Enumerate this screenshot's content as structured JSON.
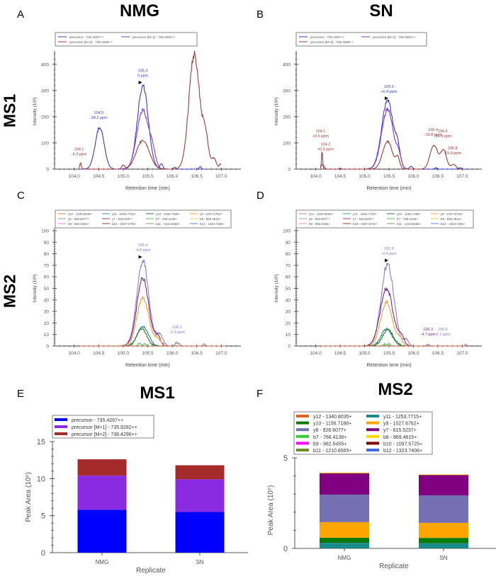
{
  "figure": {
    "column_titles": [
      "NMG",
      "SN"
    ],
    "row_titles": [
      "MS1",
      "MS2"
    ],
    "panel_letters": [
      "A",
      "B",
      "C",
      "D",
      "E",
      "F"
    ]
  },
  "chart_data": [
    {
      "id": "A",
      "type": "line",
      "title": "",
      "xlabel": "Retention time (min)",
      "ylabel": "Intensity (10^3)",
      "xlim": [
        103.6,
        107.4
      ],
      "ylim": [
        0,
        440
      ],
      "xticks": [
        "104.0",
        "104.5",
        "105.0",
        "105.5",
        "106.0",
        "106.5",
        "107.0"
      ],
      "yticks": [
        "0",
        "100",
        "200",
        "300",
        "400"
      ],
      "legend": [
        "precursor - 735.4267++",
        "precursor [M+1] - 735.9282++",
        "precursor [M+2] - 736.4296++"
      ],
      "series": [
        {
          "name": "precursor - 735.4267++",
          "color": "#3a3ad6",
          "peaks": [
            [
              104.52,
              160,
              0.09
            ],
            [
              105.4,
              320,
              0.11
            ],
            [
              105.78,
              20,
              0.03
            ],
            [
              106.05,
              8,
              0.02
            ],
            [
              106.57,
              10,
              0.02
            ]
          ],
          "range": [
            104.1,
            106.7
          ]
        },
        {
          "name": "precursor [M+1] - 735.9282++",
          "color": "#8a3ad6",
          "peaks": [
            [
              105.4,
              225,
              0.12
            ],
            [
              105.6,
              50,
              0.06
            ]
          ],
          "range": [
            104.9,
            106.0
          ]
        },
        {
          "name": "precursor [M+2] - 736.4296++",
          "color": "#a33a3a",
          "peaks": [
            [
              104.13,
              25,
              0.015
            ],
            [
              105.0,
              15,
              0.03
            ],
            [
              105.4,
              110,
              0.13
            ],
            [
              106.45,
              440,
              0.11
            ],
            [
              106.68,
              110,
              0.06
            ],
            [
              106.85,
              40,
              0.05
            ],
            [
              106.98,
              18,
              0.02
            ]
          ],
          "range": [
            104.1,
            107.0
          ]
        }
      ],
      "annotations": [
        {
          "x": 104.1,
          "y": 25,
          "text": [
            "104.1",
            "-6.3 ppm"
          ],
          "color": "#a33a3a"
        },
        {
          "x": 104.5,
          "y": 165,
          "text": [
            "104.5",
            "-28.2 ppm"
          ],
          "color": "#3a3ad6"
        },
        {
          "x": 105.4,
          "y": 325,
          "text": [
            "105.4",
            "0 ppm"
          ],
          "color": "#3a3ad6"
        }
      ]
    },
    {
      "id": "B",
      "type": "line",
      "title": "",
      "xlabel": "Retention time (min)",
      "ylabel": "Intensity (10^3)",
      "xlim": [
        103.6,
        107.4
      ],
      "ylim": [
        0,
        440
      ],
      "xticks": [
        "104.0",
        "104.5",
        "105.0",
        "105.5",
        "106.0",
        "106.5",
        "107.0"
      ],
      "yticks": [
        "0",
        "100",
        "200",
        "300",
        "400"
      ],
      "legend": [
        "precursor - 735.4267++",
        "precursor [M+1] - 735.9282++",
        "precursor [M+2] - 736.4296++"
      ],
      "series": [
        {
          "name": "precursor - 735.4267++",
          "color": "#3a3ad6",
          "peaks": [
            [
              104.14,
              18,
              0.03
            ],
            [
              104.5,
              3,
              0.02
            ],
            [
              105.47,
              260,
              0.12
            ],
            [
              105.68,
              60,
              0.05
            ],
            [
              105.95,
              10,
              0.03
            ],
            [
              106.46,
              5,
              0.02
            ],
            [
              106.95,
              5,
              0.03
            ]
          ],
          "range": [
            104.1,
            107.1
          ]
        },
        {
          "name": "precursor [M+1] - 735.9282++",
          "color": "#8a3ad6",
          "peaks": [
            [
              105.47,
              228,
              0.12
            ],
            [
              105.7,
              40,
              0.05
            ]
          ],
          "range": [
            105.0,
            106.1
          ]
        },
        {
          "name": "precursor [M+2] - 736.4296++",
          "color": "#a33a3a",
          "peaks": [
            [
              104.13,
              70,
              0.012
            ],
            [
              105.47,
              105,
              0.1
            ],
            [
              105.68,
              40,
              0.04
            ],
            [
              106.42,
              90,
              0.08
            ],
            [
              106.62,
              70,
              0.06
            ],
            [
              106.82,
              18,
              0.05
            ]
          ],
          "range": [
            104.1,
            107.0
          ]
        }
      ],
      "annotations": [
        {
          "x": 104.1,
          "y": 95,
          "text": [
            "104.1",
            "+0.5 ppm"
          ],
          "color": "#a33a3a"
        },
        {
          "x": 104.2,
          "y": 45,
          "text": [
            "104.2",
            "+0.5 ppm"
          ],
          "color": "#a33a3a"
        },
        {
          "x": 105.5,
          "y": 265,
          "text": [
            "105.5",
            "+0.4 ppm"
          ],
          "color": "#3a3ad6"
        },
        {
          "x": 106.4,
          "y": 100,
          "text": [
            "106.4",
            "-19.8 ppm"
          ],
          "color": "#a33a3a"
        },
        {
          "x": 106.6,
          "y": 95,
          "text": [
            "106.6",
            "-19.9 ppm"
          ],
          "color": "#a33a3a"
        },
        {
          "x": 106.8,
          "y": 30,
          "text": [
            "106.8",
            "-19.9 ppm"
          ],
          "color": "#a33a3a"
        }
      ]
    },
    {
      "id": "C",
      "type": "line",
      "title": "",
      "xlabel": "Retention time (min)",
      "ylabel": "Intensity (10^3)",
      "xlim": [
        103.6,
        107.4
      ],
      "ylim": [
        0,
        100
      ],
      "xticks": [
        "104.0",
        "104.5",
        "105.0",
        "105.5",
        "106.0",
        "106.5",
        "107.0"
      ],
      "yticks": [
        "0",
        "10",
        "20",
        "30",
        "40",
        "50",
        "60",
        "70",
        "80",
        "90",
        "100"
      ],
      "legend": [
        "y12 - 1340.8035+",
        "y11 - 1253.7715+",
        "y10 - 1156.7188+",
        "y9 - 1027.6762+",
        "y8 - 928.6077+",
        "y7 - 815.5237+",
        "b7 - 768.4138+",
        "b8 - 869.4615+",
        "b9 - 982.5455+",
        "b10 - 1097.5725+",
        "b11 - 1210.6565+",
        "b12 - 1323.7406+"
      ],
      "series": [
        {
          "name": "y8 - 928.6077+",
          "color": "#8c7ad0",
          "peaks": [
            [
              105.4,
              74,
              0.12
            ],
            [
              105.75,
              10,
              0.06
            ],
            [
              106.1,
              3,
              0.04
            ],
            [
              106.65,
              2,
              0.02
            ]
          ],
          "range": [
            104.1,
            107.1
          ]
        },
        {
          "name": "y7 - 815.5237+",
          "color": "#7a2a8a",
          "peaks": [
            [
              105.4,
              59,
              0.12
            ],
            [
              105.7,
              8,
              0.06
            ]
          ],
          "range": [
            104.1,
            107.1
          ]
        },
        {
          "name": "y9 - 1027.6762+",
          "color": "#ff9a30",
          "peaks": [
            [
              105.4,
              42,
              0.12
            ],
            [
              105.7,
              6,
              0.06
            ]
          ],
          "range": [
            104.1,
            107.1
          ]
        },
        {
          "name": "y11 - 1253.7715+",
          "color": "#2a8a7a",
          "peaks": [
            [
              105.4,
              17,
              0.11
            ]
          ],
          "range": [
            104.1,
            107.1
          ]
        },
        {
          "name": "y10 - 1156.7188+",
          "color": "#2a7a3a",
          "peaks": [
            [
              105.38,
              15,
              0.1
            ]
          ],
          "range": [
            104.1,
            107.1
          ]
        },
        {
          "name": "b7 - 768.4138+",
          "color": "#4ac050",
          "peaks": [
            [
              105.33,
              2,
              0.03
            ],
            [
              105.45,
              2,
              0.03
            ]
          ],
          "range": [
            104.1,
            107.1
          ]
        },
        {
          "name": "y12 - 1340.8035+",
          "color": "#c0603a",
          "peaks": [],
          "range": [
            104.1,
            107.1
          ]
        }
      ],
      "annotations": [
        {
          "x": 105.4,
          "y": 76,
          "text": [
            "105.4",
            "-4.8 ppm"
          ],
          "color": "#8c7ad0"
        },
        {
          "x": 106.1,
          "y": 5,
          "text": [
            "106.1",
            "-3.3 ppm"
          ],
          "color": "#8c7ad0"
        }
      ]
    },
    {
      "id": "D",
      "type": "line",
      "title": "",
      "xlabel": "Retention time (min)",
      "ylabel": "Intensity (10^3)",
      "xlim": [
        103.6,
        107.4
      ],
      "ylim": [
        0,
        100
      ],
      "xticks": [
        "104.0",
        "104.5",
        "105.0",
        "105.5",
        "106.0",
        "106.5",
        "107.0"
      ],
      "yticks": [
        "0",
        "10",
        "20",
        "30",
        "40",
        "50",
        "60",
        "70",
        "80",
        "90",
        "100"
      ],
      "legend": [
        "y12 - 1340.8035+",
        "y11 - 1253.7715+",
        "y10 - 1156.7188+",
        "y9 - 1027.6762+",
        "y8 - 928.6077+",
        "y7 - 815.5237+",
        "b7 - 768.4138+",
        "b8 - 869.4615+",
        "b9 - 982.5455+",
        "b10 - 1097.5725+",
        "b11 - 1210.6565+",
        "b12 - 1323.7406+"
      ],
      "series": [
        {
          "name": "y8 - 928.6077+",
          "color": "#8c7ad0",
          "peaks": [
            [
              105.47,
              71,
              0.13
            ],
            [
              105.85,
              5,
              0.05
            ],
            [
              106.3,
              1.5,
              0.03
            ],
            [
              107.07,
              2,
              0.01
            ]
          ],
          "range": [
            104.1,
            107.1
          ]
        },
        {
          "name": "y7 - 815.5237+",
          "color": "#7a2a8a",
          "peaks": [
            [
              105.45,
              50,
              0.13
            ],
            [
              105.75,
              8,
              0.06
            ]
          ],
          "range": [
            104.1,
            107.1
          ]
        },
        {
          "name": "y9 - 1027.6762+",
          "color": "#ff9a30",
          "peaks": [
            [
              105.45,
              38,
              0.12
            ],
            [
              105.72,
              6,
              0.05
            ]
          ],
          "range": [
            104.1,
            107.1
          ]
        },
        {
          "name": "y11 - 1253.7715+",
          "color": "#2a8a7a",
          "peaks": [
            [
              105.45,
              15,
              0.11
            ]
          ],
          "range": [
            104.1,
            107.1
          ]
        },
        {
          "name": "y10 - 1156.7188+",
          "color": "#2a7a3a",
          "peaks": [
            [
              105.48,
              14,
              0.11
            ]
          ],
          "range": [
            104.1,
            107.1
          ]
        },
        {
          "name": "b7 - 768.4138+",
          "color": "#4ac050",
          "peaks": [
            [
              105.4,
              1.5,
              0.03
            ],
            [
              105.5,
              1.5,
              0.03
            ]
          ],
          "range": [
            104.1,
            107.1
          ]
        },
        {
          "name": "y12 - 1340.8035+",
          "color": "#c0603a",
          "peaks": [],
          "range": [
            104.1,
            107.1
          ]
        }
      ],
      "annotations": [
        {
          "x": 105.5,
          "y": 73,
          "text": [
            "105.5",
            "-4.4 ppm"
          ],
          "color": "#8c7ad0"
        },
        {
          "x": 106.3,
          "y": 3,
          "text": [
            "106.3",
            "-4.7 ppm"
          ],
          "color": "#7a2a8a"
        },
        {
          "x": 106.6,
          "y": 3,
          "text": [
            "106.6",
            "-6.1 ppm"
          ],
          "color": "#8c7ad0"
        }
      ]
    },
    {
      "id": "E",
      "type": "bar",
      "stacked": true,
      "title": "MS1",
      "xlabel": "Replicate",
      "ylabel": "Peak Area (10^6)",
      "categories": [
        "NMG",
        "SN"
      ],
      "ylim": [
        0,
        15
      ],
      "yticks": [
        "0",
        "5",
        "10",
        "15"
      ],
      "series": [
        {
          "name": "precursor - 735.4267++",
          "color": "#0000ff",
          "values": [
            5.8,
            5.5
          ]
        },
        {
          "name": "precursor [M+1] - 735.9282++",
          "color": "#8a2be2",
          "values": [
            4.6,
            4.4
          ]
        },
        {
          "name": "precursor [M+2] - 736.4296++",
          "color": "#a52a2a",
          "values": [
            2.2,
            1.9
          ]
        }
      ]
    },
    {
      "id": "F",
      "type": "bar",
      "stacked": true,
      "title": "MS2",
      "xlabel": "Replicate",
      "ylabel": "Peak Area (10^6)",
      "categories": [
        "NMG",
        "SN"
      ],
      "ylim": [
        0,
        5
      ],
      "yticks": [
        "0",
        "5"
      ],
      "series": [
        {
          "name": "y11 - 1253.7715+",
          "color": "#1a8a8a",
          "values": [
            0.31,
            0.28
          ]
        },
        {
          "name": "y10 - 1156.7188+",
          "color": "#0a7a0a",
          "values": [
            0.28,
            0.3
          ]
        },
        {
          "name": "y9 - 1027.6762+",
          "color": "#ffa500",
          "values": [
            0.86,
            0.83
          ]
        },
        {
          "name": "y8 - 928.6077+",
          "color": "#7570b3",
          "values": [
            1.52,
            1.52
          ]
        },
        {
          "name": "y7 - 815.5237+",
          "color": "#800080",
          "values": [
            1.17,
            1.13
          ]
        },
        {
          "name": "y12 - 1340.8035+",
          "color": "#d2691e",
          "values": [
            0.02,
            0.01
          ]
        },
        {
          "name": "b8 - 869.4615+",
          "color": "#ffd700",
          "values": [
            0.02,
            0.01
          ]
        },
        {
          "name": "b7 - 768.4138+",
          "color": "#32cd32",
          "values": [
            0.0,
            0.0
          ]
        },
        {
          "name": "b9 - 982.5455+",
          "color": "#ff00ff",
          "values": [
            0.0,
            0.0
          ]
        },
        {
          "name": "b10 - 1097.5725+",
          "color": "#800000",
          "values": [
            0.0,
            0.0
          ]
        },
        {
          "name": "b11 - 1210.6565+",
          "color": "#6b8e23",
          "values": [
            0.0,
            0.0
          ]
        },
        {
          "name": "b12 - 1323.7406+",
          "color": "#4169e1",
          "values": [
            0.0,
            0.0
          ]
        }
      ],
      "legend_order": [
        {
          "name": "y12 - 1340.8035+",
          "color": "#d2691e"
        },
        {
          "name": "y11 - 1253.7715+",
          "color": "#1a8a8a"
        },
        {
          "name": "y10 - 1156.7188+",
          "color": "#0a7a0a"
        },
        {
          "name": "y9 - 1027.6762+",
          "color": "#ffa500"
        },
        {
          "name": "y8 - 928.6077+",
          "color": "#7570b3"
        },
        {
          "name": "y7 - 815.5237+",
          "color": "#800080"
        },
        {
          "name": "b7 - 768.4138+",
          "color": "#32cd32"
        },
        {
          "name": "b8 - 869.4615+",
          "color": "#ffd700"
        },
        {
          "name": "b9 - 982.5455+",
          "color": "#ff00ff"
        },
        {
          "name": "b10 - 1097.5725+",
          "color": "#800000"
        },
        {
          "name": "b11 - 1210.6565+",
          "color": "#6b8e23"
        },
        {
          "name": "b12 - 1323.7406+",
          "color": "#4169e1"
        }
      ]
    }
  ],
  "ms2_legend_colors": [
    "#e08050",
    "#3a9a9a",
    "#2a7a3a",
    "#ffa040",
    "#9a9ab0",
    "#8a4a9a",
    "#5ac060",
    "#f0d050",
    "#f080f0",
    "#8a3a3a",
    "#7aa05a",
    "#6080d0"
  ]
}
